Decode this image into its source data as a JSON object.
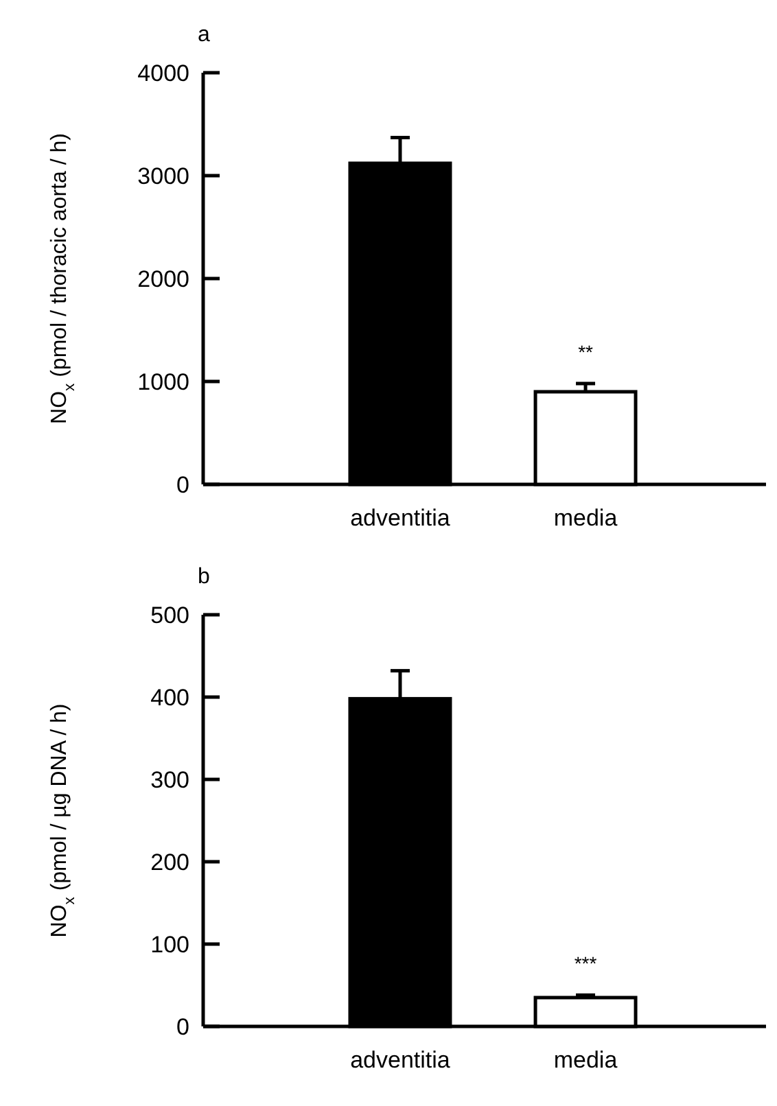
{
  "chart_data": [
    {
      "type": "bar",
      "title": "a",
      "ylabel": "NO$_{x}$ (pmol / thoracic aorta / h)",
      "categories": [
        "adventitia",
        "media"
      ],
      "values": [
        3120,
        900
      ],
      "errors": [
        250,
        80
      ],
      "colors": [
        "#000000",
        "#ffffff"
      ],
      "ylim": [
        0,
        4000
      ],
      "yticks": [
        0,
        1000,
        2000,
        3000,
        4000
      ],
      "annotations": [
        "**"
      ]
    },
    {
      "type": "bar",
      "title": "b",
      "ylabel": "NO$_{x}$ (pmol / µg DNA / h)",
      "categories": [
        "adventitia",
        "media"
      ],
      "values": [
        398,
        35
      ],
      "errors": [
        34,
        3
      ],
      "colors": [
        "#000000",
        "#ffffff"
      ],
      "ylim": [
        0,
        500
      ],
      "yticks": [
        0,
        100,
        200,
        300,
        400,
        500
      ],
      "annotations": [
        "***"
      ]
    }
  ]
}
